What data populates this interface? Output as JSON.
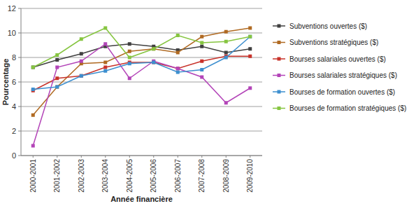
{
  "chart_data": {
    "type": "line",
    "x_label": "Année financière",
    "y_label": "Pourcentage",
    "categories": [
      "2000-2001",
      "2001-2002",
      "2002-2003",
      "2003-2004",
      "2004-2005",
      "2005-2006",
      "2006-2007",
      "2007-2008",
      "2008-2009",
      "2009-2010"
    ],
    "series": [
      {
        "name": "Subventions ouvertes ($)",
        "color": "#404040",
        "values": [
          7.2,
          7.8,
          8.3,
          8.9,
          9.1,
          8.9,
          8.6,
          8.9,
          8.4,
          8.7
        ]
      },
      {
        "name": "Subventions stratégiques ($)",
        "color": "#b06a22",
        "values": [
          3.3,
          5.6,
          7.5,
          7.6,
          8.5,
          8.7,
          8.4,
          9.7,
          10.1,
          10.4
        ]
      },
      {
        "name": "Bourses salariales ouvertes ($)",
        "color": "#c8322a",
        "values": [
          5.3,
          6.3,
          6.5,
          7.2,
          7.6,
          7.6,
          7.1,
          7.7,
          8.1,
          8.1
        ]
      },
      {
        "name": "Bourses salariales stratégiques ($)",
        "color": "#b344b8",
        "values": [
          0.8,
          7.2,
          7.7,
          9.1,
          6.3,
          7.7,
          7.1,
          6.4,
          4.3,
          5.5
        ]
      },
      {
        "name": "Bourses de formation ouvertes ($)",
        "color": "#3d8fcf",
        "values": [
          5.4,
          5.6,
          6.5,
          6.9,
          7.5,
          7.6,
          6.8,
          7.0,
          8.0,
          9.7
        ]
      },
      {
        "name": "Bourses de formation stratégiques ($)",
        "color": "#86c540",
        "values": [
          7.2,
          8.2,
          9.5,
          10.4,
          8.0,
          8.7,
          9.8,
          9.2,
          9.3,
          9.7
        ]
      }
    ],
    "ylim": [
      0,
      12
    ],
    "yticks": [
      0,
      2,
      4,
      6,
      8,
      10,
      12
    ],
    "grid": true,
    "legend": "right",
    "marker": "square"
  }
}
